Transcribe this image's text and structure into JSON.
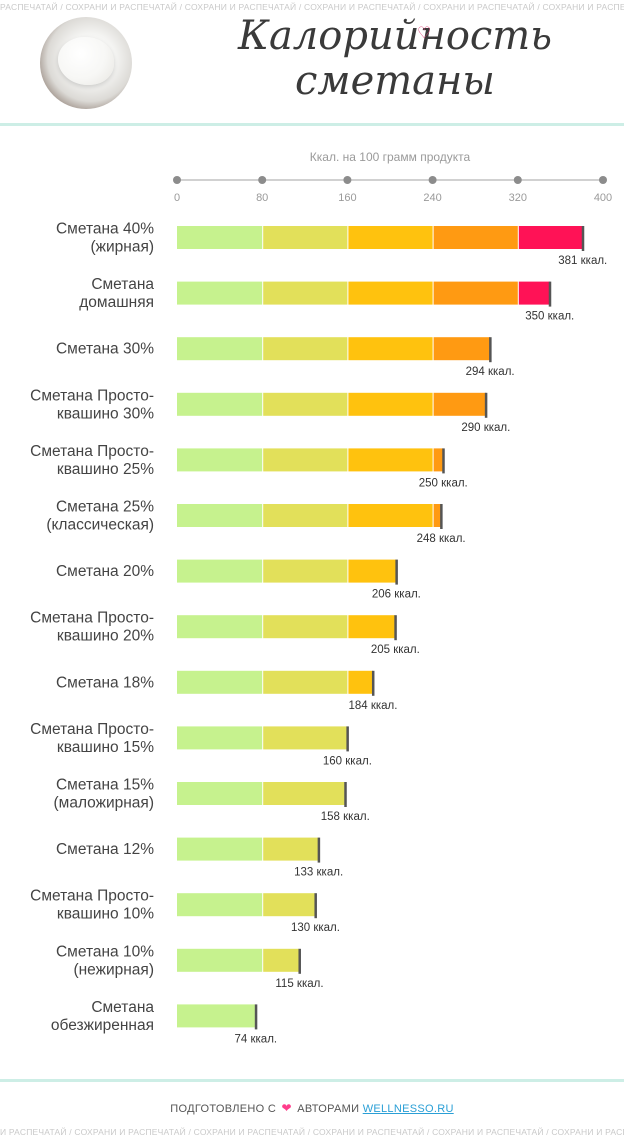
{
  "watermark": {
    "top": "РАСПЕЧАТАЙ / СОХРАНИ И РАСПЕЧАТАЙ / СОХРАНИ И РАСПЕЧАТАЙ / СОХРАНИ И РАСПЕЧАТАЙ / СОХРАНИ И РАСПЕЧАТАЙ / СОХРАНИ И РАСПЕЧАТАЙ / СОХРАНИ И РАСП",
    "bottom": "И РАСПЕЧАТАЙ / СОХРАНИ И РАСПЕЧАТАЙ / СОХРАНИ И РАСПЕЧАТАЙ / СОХРАНИ И РАСПЕЧАТАЙ / СОХРАНИ И РАСПЕЧАТАЙ / СОХРАНИ И РАСПЕЧАТАЙ / СОХРАНИ И РА"
  },
  "header": {
    "title_line1": "Калорийность",
    "title_line2": "сметаны"
  },
  "chart_data": {
    "type": "bar",
    "orientation": "horizontal",
    "axis_caption": "Ккал. на 100 грамм продукта",
    "xlim": [
      0,
      400
    ],
    "ticks": [
      0,
      80,
      160,
      240,
      320,
      400
    ],
    "value_suffix": " ккал.",
    "band_colors": [
      "#c6f28e",
      "#e2e05a",
      "#ffc20e",
      "#ff9a12",
      "#ff1256"
    ],
    "items": [
      {
        "label": [
          "Сметана 40%",
          "(жирная)"
        ],
        "value": 381
      },
      {
        "label": [
          "Сметана",
          "домашняя"
        ],
        "value": 350
      },
      {
        "label": [
          "Сметана 30%"
        ],
        "value": 294
      },
      {
        "label": [
          "Сметана Просто-",
          "квашино 30%"
        ],
        "value": 290
      },
      {
        "label": [
          "Сметана Просто-",
          "квашино 25%"
        ],
        "value": 250
      },
      {
        "label": [
          "Сметана 25%",
          "(классическая)"
        ],
        "value": 248
      },
      {
        "label": [
          "Сметана 20%"
        ],
        "value": 206
      },
      {
        "label": [
          "Сметана Просто-",
          "квашино 20%"
        ],
        "value": 205
      },
      {
        "label": [
          "Сметана 18%"
        ],
        "value": 184
      },
      {
        "label": [
          "Сметана Просто-",
          "квашино 15%"
        ],
        "value": 160
      },
      {
        "label": [
          "Сметана 15%",
          "(маложирная)"
        ],
        "value": 158
      },
      {
        "label": [
          "Сметана 12%"
        ],
        "value": 133
      },
      {
        "label": [
          "Сметана Просто-",
          "квашино 10%"
        ],
        "value": 130
      },
      {
        "label": [
          "Сметана 10%",
          "(нежирная)"
        ],
        "value": 115
      },
      {
        "label": [
          "Сметана",
          "обезжиренная"
        ],
        "value": 74
      }
    ]
  },
  "footer": {
    "prefix": "ПОДГОТОВЛЕНО С",
    "middle": "АВТОРАМИ",
    "link": "WELLNESSO.RU",
    "heart_icon": "heart-icon"
  }
}
